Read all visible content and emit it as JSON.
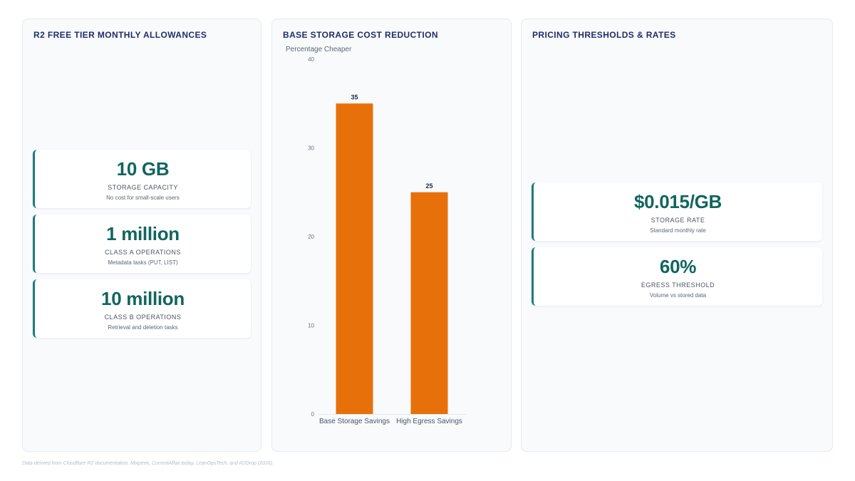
{
  "colors": {
    "accent_teal": "#11655f",
    "card_border": "#1f7b7b",
    "bar_orange": "#e8700a",
    "title_navy": "#1f2e6b"
  },
  "allowances": {
    "title": "R2 FREE TIER MONTHLY ALLOWANCES",
    "cards": [
      {
        "value": "10 GB",
        "label": "STORAGE CAPACITY",
        "sub": "No cost for small-scale users"
      },
      {
        "value": "1 million",
        "label": "CLASS A OPERATIONS",
        "sub": "Metadata tasks (PUT, LIST)"
      },
      {
        "value": "10 million",
        "label": "CLASS B OPERATIONS",
        "sub": "Retrieval and deletion tasks"
      }
    ]
  },
  "chart": {
    "title": "BASE STORAGE COST REDUCTION"
  },
  "chart_data": {
    "type": "bar",
    "title": "BASE STORAGE COST REDUCTION",
    "ylabel": "Percentage Cheaper",
    "xlabel": "",
    "categories": [
      "Base Storage Savings",
      "High Egress Savings"
    ],
    "values": [
      35,
      25
    ],
    "data_labels": [
      "35",
      "25"
    ],
    "ylim": [
      0,
      40
    ],
    "yticks": [
      0,
      10,
      20,
      30,
      40
    ],
    "grid": false,
    "legend": "none"
  },
  "pricing": {
    "title": "PRICING THRESHOLDS & RATES",
    "cards": [
      {
        "value": "$0.015/GB",
        "label": "STORAGE RATE",
        "sub": "Standard monthly rate"
      },
      {
        "value": "60%",
        "label": "EGRESS THRESHOLD",
        "sub": "Volume vs stored data"
      }
    ]
  },
  "footnote": "Data derived from Cloudflare R2 documentation, Mixpeek, CurrentAffair.today, LeanOpsTech, and R2Drop (2026)."
}
